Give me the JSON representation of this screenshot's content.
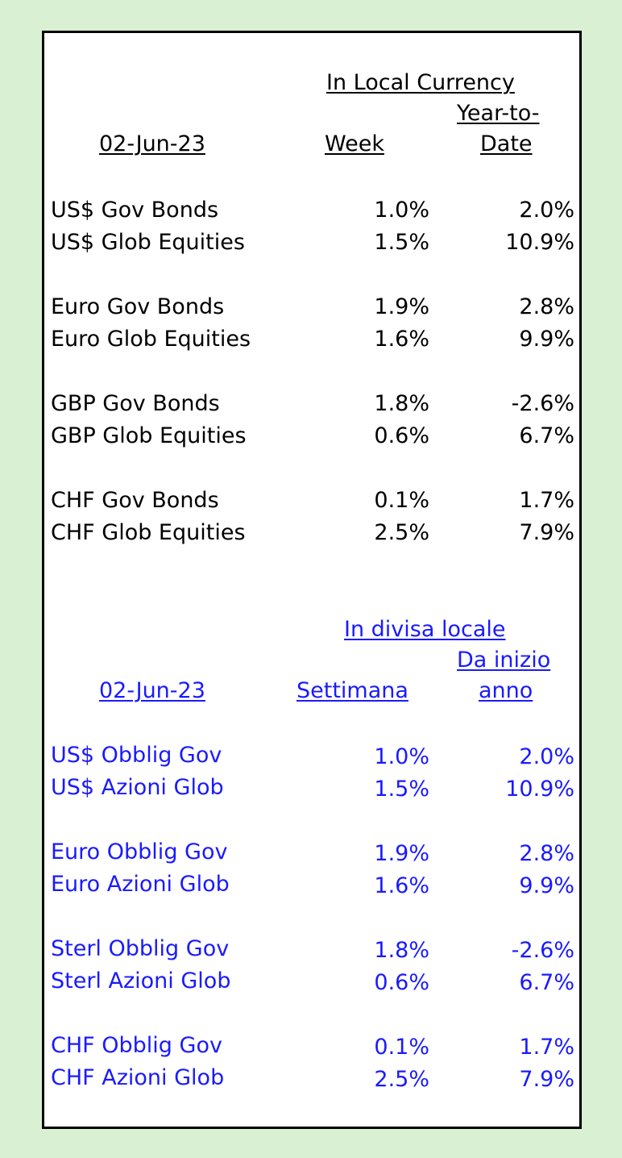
{
  "english": {
    "header": {
      "currency_label": "In Local Currency",
      "date": "02-Jun-23",
      "week_label": "Week",
      "ytd_line1": "Year-to-",
      "ytd_line2": "Date"
    },
    "rows": [
      {
        "name": "US$ Gov Bonds",
        "week": "1.0%",
        "ytd": "2.0%"
      },
      {
        "name": "US$ Glob Equities",
        "week": "1.5%",
        "ytd": "10.9%"
      },
      {
        "name": "Euro Gov Bonds",
        "week": "1.9%",
        "ytd": "2.8%"
      },
      {
        "name": "Euro Glob Equities",
        "week": "1.6%",
        "ytd": "9.9%"
      },
      {
        "name": "GBP Gov Bonds",
        "week": "1.8%",
        "ytd": "-2.6%"
      },
      {
        "name": "GBP Glob Equities",
        "week": "0.6%",
        "ytd": "6.7%"
      },
      {
        "name": "CHF Gov Bonds",
        "week": "0.1%",
        "ytd": "1.7%"
      },
      {
        "name": "CHF Glob Equities",
        "week": "2.5%",
        "ytd": "7.9%"
      }
    ]
  },
  "italian": {
    "header": {
      "currency_label": "In divisa locale",
      "date": "02-Jun-23",
      "week_label": "Settimana",
      "ytd_line1": "Da inizio ",
      "ytd_line2": "anno"
    },
    "rows": [
      {
        "name": "US$ Obblig Gov",
        "week": "1.0%",
        "ytd": "2.0%"
      },
      {
        "name": "US$ Azioni Glob",
        "week": "1.5%",
        "ytd": "10.9%"
      },
      {
        "name": "Euro Obblig Gov",
        "week": "1.9%",
        "ytd": "2.8%"
      },
      {
        "name": "Euro Azioni Glob",
        "week": "1.6%",
        "ytd": "9.9%"
      },
      {
        "name": "Sterl Obblig Gov",
        "week": "1.8%",
        "ytd": "-2.6%"
      },
      {
        "name": "Sterl Azioni Glob",
        "week": "0.6%",
        "ytd": "6.7%"
      },
      {
        "name": "CHF Obblig Gov",
        "week": "0.1%",
        "ytd": "1.7%"
      },
      {
        "name": "CHF Azioni Glob",
        "week": "2.5%",
        "ytd": "7.9%"
      }
    ]
  },
  "colors": {
    "background": "#d9f0d3",
    "panel": "#ffffff",
    "english_text": "#000000",
    "italian_text": "#1a1aff"
  }
}
